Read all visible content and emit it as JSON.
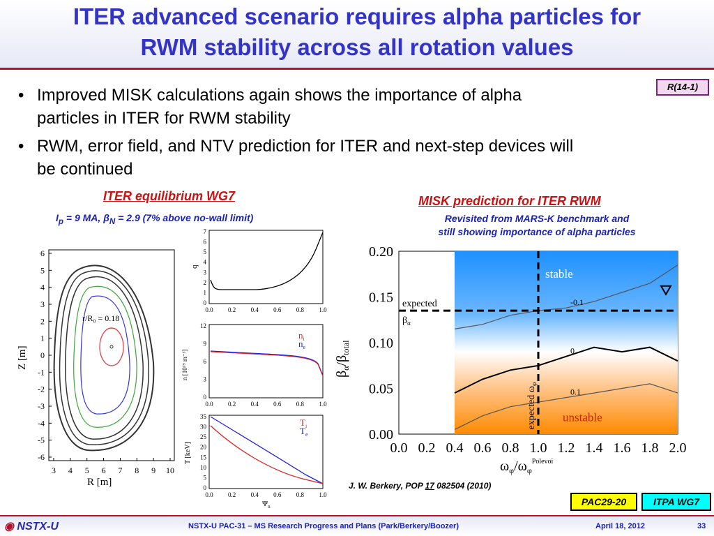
{
  "title": {
    "line1": "ITER advanced scenario requires alpha particles for",
    "line2": "RWM stability across all rotation values"
  },
  "ref_tag": "R(14-1)",
  "bullets": [
    {
      "line1": "Improved MISK calculations again shows the importance of alpha",
      "line2": "particles in ITER for RWM stability"
    },
    {
      "line1": "RWM, error field, and NTV prediction for ITER and next-step devices will",
      "line2": "be continued"
    }
  ],
  "left_panel": {
    "heading": "ITER equilibrium WG7",
    "params": {
      "ip_symbol": "I",
      "ip_sub": "p",
      "ip_value": " = 9 MA, β",
      "beta_sub": "N",
      "rest": " = 2.9 (7% above no-wall limit)"
    },
    "eq_plot": {
      "xlabel": "R [m]",
      "ylabel": "Z [m]",
      "x_ticks": [
        "3",
        "4",
        "5",
        "6",
        "7",
        "8",
        "9",
        "10"
      ],
      "y_ticks": [
        "6",
        "5",
        "4",
        "3",
        "2",
        "1",
        "0",
        "-1",
        "-2",
        "-3",
        "-4",
        "-5",
        "-6"
      ],
      "annotation": "r/R₀ = 0.18"
    },
    "q_plot": {
      "ylabel": "q",
      "y_ticks": [
        "7",
        "6",
        "5",
        "4",
        "3",
        "2",
        "1",
        "0"
      ]
    },
    "n_plot": {
      "ylabel": "n [10¹⁹ m⁻³]",
      "y_ticks": [
        "12",
        "9",
        "6",
        "3",
        "0"
      ],
      "legend_ni": "n",
      "legend_ni_sub": "i",
      "legend_ne": "n",
      "legend_ne_sub": "e"
    },
    "t_plot": {
      "ylabel": "T [keV]",
      "y_ticks": [
        "35",
        "30",
        "25",
        "20",
        "15",
        "10",
        "5",
        "0"
      ],
      "legend_ti": "T",
      "legend_ti_sub": "i",
      "legend_te": "T",
      "legend_te_sub": "e",
      "xlabel": "Ψ",
      "xlabel_sub": "n"
    },
    "profile_x_ticks": [
      "0.0",
      "0.2",
      "0.4",
      "0.6",
      "0.8",
      "1.0"
    ],
    "colors": {
      "ion": "#e02020",
      "electron": "#2020e0",
      "q": "#000000"
    }
  },
  "right_panel": {
    "heading": "MISK prediction for ITER RWM",
    "sub_line1": "Revisited from MARS-K benchmark and",
    "sub_line2": "still showing importance of alpha particles"
  },
  "chart_data": {
    "type": "heatmap",
    "title": "MISK prediction for ITER RWM",
    "xlabel": "ω",
    "xlabel_sub": "φ",
    "xlabel_div": "/ω",
    "xlabel_sub2": "φ",
    "xlabel_sup": "Polevoi",
    "ylabel": "β",
    "ylabel_sub1": "α",
    "ylabel_div": "/β",
    "ylabel_sub2": "total",
    "xlim": [
      0.0,
      2.0
    ],
    "ylim": [
      0.0,
      0.2
    ],
    "x_ticks": [
      "0.0",
      "0.2",
      "0.4",
      "0.6",
      "0.8",
      "1.0",
      "1.2",
      "1.4",
      "1.6",
      "1.8",
      "2.0"
    ],
    "y_ticks": [
      "0.20",
      "0.15",
      "0.10",
      "0.05",
      "0.00"
    ],
    "data_region": {
      "x_start": 0.4,
      "x_end": 2.0
    },
    "contours": [
      {
        "label": "-0.1",
        "points": [
          [
            0.4,
            0.115
          ],
          [
            0.6,
            0.12
          ],
          [
            0.8,
            0.13
          ],
          [
            1.0,
            0.135
          ],
          [
            1.2,
            0.138
          ],
          [
            1.4,
            0.145
          ],
          [
            1.6,
            0.155
          ],
          [
            1.8,
            0.165
          ],
          [
            2.0,
            0.185
          ]
        ]
      },
      {
        "label": "0",
        "points": [
          [
            0.4,
            0.045
          ],
          [
            0.6,
            0.06
          ],
          [
            0.8,
            0.07
          ],
          [
            1.0,
            0.075
          ],
          [
            1.2,
            0.085
          ],
          [
            1.4,
            0.095
          ],
          [
            1.6,
            0.09
          ],
          [
            1.8,
            0.095
          ],
          [
            2.0,
            0.08
          ]
        ]
      },
      {
        "label": "0.1",
        "points": [
          [
            0.4,
            0.005
          ],
          [
            0.6,
            0.02
          ],
          [
            0.8,
            0.03
          ],
          [
            1.0,
            0.035
          ],
          [
            1.2,
            0.04
          ],
          [
            1.4,
            0.045
          ],
          [
            1.6,
            0.05
          ],
          [
            1.8,
            0.055
          ],
          [
            2.0,
            0.045
          ]
        ]
      }
    ],
    "expected_beta_alpha": 0.135,
    "expected_omega": 1.0,
    "labels": {
      "stable": "stable",
      "unstable": "unstable",
      "expected_beta_line1": "expected",
      "expected_beta_line2": "β",
      "expected_beta_sub": "α",
      "expected_omega": "expected ω",
      "expected_omega_sub": "φ"
    },
    "colors": {
      "stable": "#1e90ff",
      "unstable": "#ff8a00",
      "neutral": "#ffffff"
    }
  },
  "citation": {
    "prefix": "J. W. Berkery, POP ",
    "volume": "17",
    "suffix": " 082504 (2010)"
  },
  "badges": {
    "pac": "PAC29-20",
    "itpa": "ITPA WG7"
  },
  "footer": {
    "logo": "NSTX-U",
    "center": "NSTX-U PAC-31 – MS Research Progress and Plans (Park/Berkery/Boozer)",
    "date": "April 18, 2012",
    "page": "33"
  }
}
